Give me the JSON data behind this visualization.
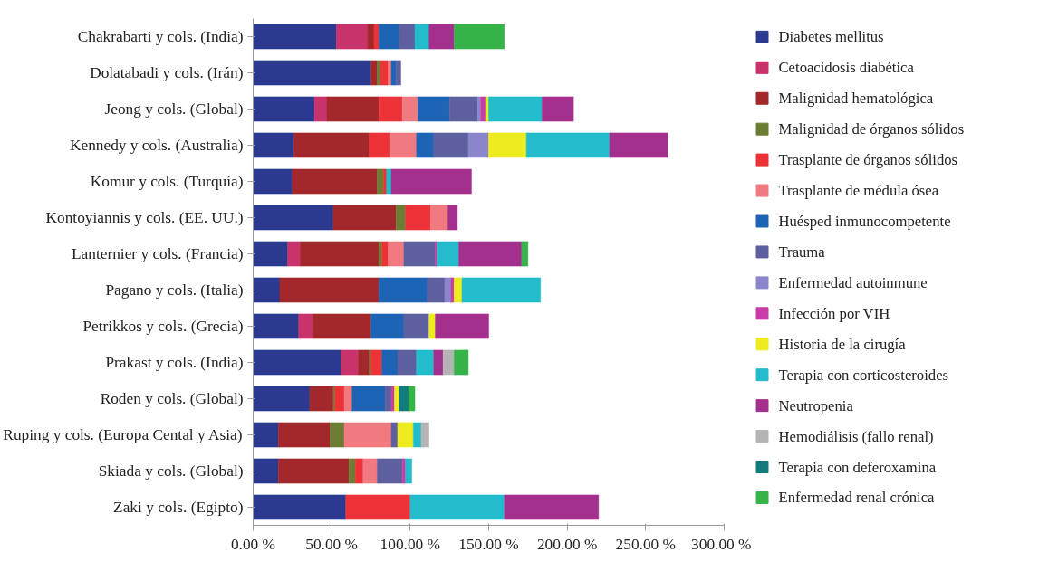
{
  "chart_data": {
    "type": "bar",
    "orientation": "horizontal",
    "stacked": true,
    "categories": [
      "Chakrabarti y cols. (India)",
      "Dolatabadi y cols. (Irán)",
      "Jeong y cols. (Global)",
      "Kennedy y cols. (Australia)",
      "Komur y cols. (Turquía)",
      "Kontoyiannis y cols. (EE. UU.)",
      "Lanternier y cols. (Francia)",
      "Pagano y cols. (Italia)",
      "Petrikkos y cols. (Grecia)",
      "Prakast y cols. (India)",
      "Roden y cols. (Global)",
      "Ruping y cols. (Europa Cental y Asia)",
      "Skiada y cols. (Global)",
      "Zaki y cols. (Egipto)"
    ],
    "series": [
      {
        "name": "Diabetes mellitus",
        "color": "#2b3990",
        "values": [
          53,
          75,
          39,
          26,
          25,
          51,
          22,
          17,
          29,
          56,
          36,
          16,
          16,
          59
        ]
      },
      {
        "name": "Cetoacidosis diabética",
        "color": "#c8336b",
        "values": [
          20,
          null,
          8,
          null,
          null,
          null,
          8,
          null,
          9,
          11,
          null,
          null,
          null,
          null
        ]
      },
      {
        "name": "Malignidad hematológica",
        "color": "#a3282b",
        "values": [
          4,
          4,
          33,
          48,
          54,
          40,
          50,
          63,
          37,
          7,
          15,
          33,
          45,
          null
        ]
      },
      {
        "name": "Malignidad de órganos sólidos",
        "color": "#6b7d32",
        "values": [
          null,
          2,
          null,
          null,
          4,
          6,
          2,
          null,
          null,
          1,
          1,
          9,
          4,
          null
        ]
      },
      {
        "name": "Trasplante de órganos sólidos",
        "color": "#ec3338",
        "values": [
          3,
          5,
          15,
          13,
          2,
          16,
          4,
          null,
          null,
          7,
          6,
          null,
          5,
          41
        ]
      },
      {
        "name": "Trasplante de médula ósea",
        "color": "#f07a80",
        "values": [
          null,
          2,
          10,
          17,
          null,
          11,
          10,
          null,
          null,
          null,
          5,
          30,
          9,
          null
        ]
      },
      {
        "name": "Huésped inmunocompetente",
        "color": "#1e64b4",
        "values": [
          13,
          3,
          20,
          11,
          null,
          null,
          null,
          31,
          21,
          10,
          21,
          null,
          null,
          null
        ]
      },
      {
        "name": "Trauma",
        "color": "#5e5f9e",
        "values": [
          10,
          3,
          18,
          22,
          null,
          null,
          20,
          11,
          16,
          12,
          4,
          4,
          16,
          null
        ]
      },
      {
        "name": "Enfermedad autoinmune",
        "color": "#8b86cc",
        "values": [
          null,
          null,
          2,
          13,
          null,
          null,
          null,
          4,
          null,
          null,
          null,
          null,
          null,
          null
        ]
      },
      {
        "name": "Infección por VIH",
        "color": "#c83ca8",
        "values": [
          null,
          null,
          3,
          null,
          null,
          null,
          1,
          2,
          null,
          null,
          2,
          null,
          2,
          null
        ]
      },
      {
        "name": "Historia de la cirugía",
        "color": "#ecec1e",
        "values": [
          null,
          null,
          2,
          24,
          null,
          null,
          null,
          5,
          4,
          null,
          3,
          10,
          null,
          null
        ]
      },
      {
        "name": "Terapia con corticosteroides",
        "color": "#22bccc",
        "values": [
          9,
          null,
          34,
          53,
          3,
          null,
          14,
          50,
          null,
          11,
          null,
          5,
          4,
          60
        ]
      },
      {
        "name": "Neutropenia",
        "color": "#a3308c",
        "values": [
          16,
          null,
          20,
          37,
          51,
          6,
          40,
          null,
          34,
          6,
          null,
          null,
          null,
          60
        ]
      },
      {
        "name": "Hemodiálisis (fallo renal)",
        "color": "#b4b4b4",
        "values": [
          null,
          null,
          null,
          null,
          null,
          null,
          null,
          null,
          null,
          7,
          null,
          5,
          null,
          null
        ]
      },
      {
        "name": "Terapia con deferoxamina",
        "color": "#137b7b",
        "values": [
          null,
          null,
          null,
          null,
          null,
          null,
          null,
          null,
          null,
          null,
          6,
          null,
          null,
          null
        ]
      },
      {
        "name": "Enfermedad renal crónica",
        "color": "#36b44a",
        "values": [
          32,
          null,
          null,
          null,
          null,
          null,
          4,
          null,
          null,
          9,
          4,
          null,
          null,
          null
        ]
      }
    ],
    "xlim": [
      0,
      300
    ],
    "xticks": [
      {
        "value": 0,
        "label": "0.00 %"
      },
      {
        "value": 50,
        "label": "50.00 %"
      },
      {
        "value": 100,
        "label": "100.00 %"
      },
      {
        "value": 150,
        "label": "150.00 %"
      },
      {
        "value": 200,
        "label": "200.00 %"
      },
      {
        "value": 250,
        "label": "250.00 %"
      },
      {
        "value": 300,
        "label": "300.00 %"
      }
    ],
    "grid": false,
    "legend": "right"
  }
}
